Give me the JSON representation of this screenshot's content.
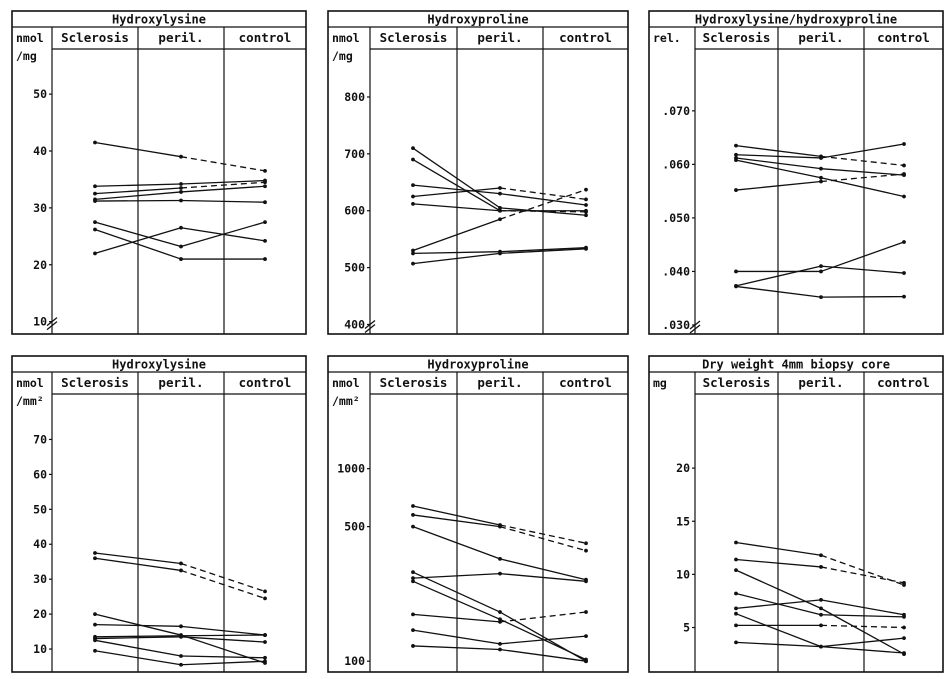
{
  "chart_data": [
    {
      "type": "line",
      "title": "Hydroxylysine",
      "unit_lines": [
        "nmol",
        "/mg"
      ],
      "categories": [
        "Sclerosis",
        "peril.",
        "control"
      ],
      "ylim": [
        8,
        56
      ],
      "yticks": [
        10,
        20,
        30,
        40,
        50
      ],
      "axis_break": true,
      "series": [
        {
          "values": [
            41.5,
            39,
            36.5
          ],
          "dashed": [
            false,
            true
          ]
        },
        {
          "values": [
            33.8,
            34.2,
            34.8
          ],
          "dashed": [
            false,
            false
          ]
        },
        {
          "values": [
            32.5,
            33.5,
            34.5
          ],
          "dashed": [
            false,
            true
          ]
        },
        {
          "values": [
            31.5,
            32.8,
            33.8
          ],
          "dashed": [
            false,
            false
          ]
        },
        {
          "values": [
            31.2,
            31.3,
            31.0
          ],
          "dashed": [
            false,
            false
          ]
        },
        {
          "values": [
            27.5,
            23.2,
            27.5
          ],
          "dashed": [
            false,
            false
          ]
        },
        {
          "values": [
            26.2,
            21.0,
            21.0
          ],
          "dashed": [
            false,
            false
          ]
        },
        {
          "values": [
            22.0,
            26.5,
            24.2
          ],
          "dashed": [
            false,
            false
          ]
        }
      ]
    },
    {
      "type": "line",
      "title": "Hydroxyproline",
      "unit_lines": [
        "nmol",
        "/mg"
      ],
      "categories": [
        "Sclerosis",
        "peril.",
        "control"
      ],
      "ylim": [
        385,
        865
      ],
      "yticks": [
        400,
        500,
        600,
        700,
        800
      ],
      "axis_break": true,
      "series": [
        {
          "values": [
            710,
            605,
            592
          ],
          "dashed": [
            false,
            false
          ]
        },
        {
          "values": [
            690,
            600,
            600
          ],
          "dashed": [
            false,
            false
          ]
        },
        {
          "values": [
            645,
            630,
            610
          ],
          "dashed": [
            false,
            false
          ]
        },
        {
          "values": [
            625,
            640,
            620
          ],
          "dashed": [
            false,
            true
          ]
        },
        {
          "values": [
            612,
            600,
            598
          ],
          "dashed": [
            false,
            true
          ]
        },
        {
          "values": [
            530,
            585,
            637
          ],
          "dashed": [
            false,
            true
          ]
        },
        {
          "values": [
            525,
            528,
            535
          ],
          "dashed": [
            false,
            false
          ]
        },
        {
          "values": [
            507,
            525,
            533
          ],
          "dashed": [
            false,
            false
          ]
        }
      ]
    },
    {
      "type": "line",
      "title": "Hydroxylysine/hydroxyproline",
      "unit_lines": [
        "rel."
      ],
      "categories": [
        "Sclerosis",
        "peril.",
        "control"
      ],
      "ylim": [
        0.0285,
        0.0795
      ],
      "yticks": [
        0.03,
        0.04,
        0.05,
        0.06,
        0.07
      ],
      "tick_labels": [
        ".030",
        ".040",
        ".050",
        ".060",
        ".070"
      ],
      "axis_break": true,
      "series": [
        {
          "values": [
            0.0635,
            0.0615,
            0.0598
          ],
          "dashed": [
            false,
            true
          ]
        },
        {
          "values": [
            0.0618,
            0.0612,
            0.0638
          ],
          "dashed": [
            false,
            false
          ]
        },
        {
          "values": [
            0.0612,
            0.0592,
            0.058
          ],
          "dashed": [
            false,
            false
          ]
        },
        {
          "values": [
            0.0608,
            0.0575,
            0.054
          ],
          "dashed": [
            false,
            false
          ]
        },
        {
          "values": [
            0.0552,
            0.0568,
            0.0582
          ],
          "dashed": [
            false,
            true
          ]
        },
        {
          "values": [
            0.04,
            0.04,
            0.0455
          ],
          "dashed": [
            false,
            false
          ]
        },
        {
          "values": [
            0.0373,
            0.041,
            0.0397
          ],
          "dashed": [
            false,
            false
          ]
        },
        {
          "values": [
            0.0372,
            0.0352,
            0.0353
          ],
          "dashed": [
            false,
            false
          ]
        }
      ]
    },
    {
      "type": "line",
      "title": "Hydroxylysine",
      "unit_lines": [
        "nmol",
        "/mm²"
      ],
      "categories": [
        "Sclerosis",
        "peril.",
        "control"
      ],
      "ylim": [
        4,
        77
      ],
      "yticks": [
        10,
        20,
        30,
        40,
        50,
        60,
        70
      ],
      "series": [
        {
          "values": [
            37.5,
            34.5,
            26.5
          ],
          "dashed": [
            false,
            true
          ]
        },
        {
          "values": [
            36.0,
            32.5,
            24.5
          ],
          "dashed": [
            false,
            true
          ]
        },
        {
          "values": [
            20.0,
            14.0,
            6.0
          ],
          "dashed": [
            false,
            false
          ]
        },
        {
          "values": [
            17.0,
            16.5,
            14.0
          ],
          "dashed": [
            false,
            false
          ]
        },
        {
          "values": [
            13.5,
            13.8,
            14.0
          ],
          "dashed": [
            false,
            false
          ]
        },
        {
          "values": [
            13.0,
            13.5,
            12.0
          ],
          "dashed": [
            false,
            false
          ]
        },
        {
          "values": [
            12.5,
            8.0,
            7.5
          ],
          "dashed": [
            false,
            false
          ]
        },
        {
          "values": [
            9.5,
            5.5,
            6.5
          ],
          "dashed": [
            false,
            false
          ]
        }
      ]
    },
    {
      "type": "line",
      "title": "Hydroxyproline",
      "unit_lines": [
        "nmol",
        "/mm²"
      ],
      "categories": [
        "Sclerosis",
        "peril.",
        "control"
      ],
      "y_scale": "log",
      "ylim": [
        90,
        1900
      ],
      "yticks": [
        100,
        500,
        1000
      ],
      "series": [
        {
          "values": [
            640,
            510,
            410
          ],
          "dashed": [
            false,
            true
          ]
        },
        {
          "values": [
            575,
            500,
            375
          ],
          "dashed": [
            false,
            true
          ]
        },
        {
          "values": [
            500,
            340,
            265
          ],
          "dashed": [
            false,
            false
          ]
        },
        {
          "values": [
            290,
            180,
            100
          ],
          "dashed": [
            false,
            false
          ]
        },
        {
          "values": [
            270,
            285,
            260
          ],
          "dashed": [
            false,
            false
          ]
        },
        {
          "values": [
            260,
            165,
            102
          ],
          "dashed": [
            false,
            false
          ]
        },
        {
          "values": [
            175,
            160,
            180
          ],
          "dashed": [
            false,
            true
          ]
        },
        {
          "values": [
            145,
            123,
            135
          ],
          "dashed": [
            false,
            false
          ]
        },
        {
          "values": [
            120,
            115,
            100
          ],
          "dashed": [
            false,
            false
          ]
        }
      ]
    },
    {
      "type": "line",
      "title": "Dry weight 4mm biopsy core",
      "unit_lines": [
        "mg"
      ],
      "categories": [
        "Sclerosis",
        "peril.",
        "control"
      ],
      "ylim": [
        1,
        25
      ],
      "yticks": [
        5,
        10,
        15,
        20
      ],
      "series": [
        {
          "values": [
            13.0,
            11.8,
            9.0
          ],
          "dashed": [
            false,
            true
          ]
        },
        {
          "values": [
            11.4,
            10.7,
            9.2
          ],
          "dashed": [
            false,
            true
          ]
        },
        {
          "values": [
            10.4,
            6.8,
            2.5
          ],
          "dashed": [
            false,
            false
          ]
        },
        {
          "values": [
            8.2,
            6.2,
            6.0
          ],
          "dashed": [
            false,
            false
          ]
        },
        {
          "values": [
            6.8,
            7.6,
            6.2
          ],
          "dashed": [
            false,
            false
          ]
        },
        {
          "values": [
            6.3,
            3.2,
            4.0
          ],
          "dashed": [
            false,
            false
          ]
        },
        {
          "values": [
            5.2,
            5.2,
            5.0
          ],
          "dashed": [
            false,
            true
          ]
        },
        {
          "values": [
            3.6,
            3.2,
            2.6
          ],
          "dashed": [
            false,
            false
          ]
        }
      ]
    }
  ]
}
